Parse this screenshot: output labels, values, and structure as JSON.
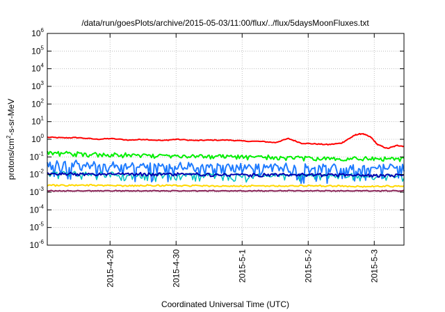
{
  "chart_data": {
    "type": "line",
    "title": "/data/run/goesPlots/archive/2015-05-03/11:00/flux/../flux/5daysMoonFluxes.txt",
    "xlabel": "Coordinated Universal Time (UTC)",
    "ylabel": "protons/cm2-s-sr-MeV",
    "ylabel_parts": {
      "pre": "protons/cm",
      "sup": "2",
      "post": "-s-sr-MeV"
    },
    "x_unit": "days since 2015-04-28 00:00 UTC",
    "xlim": [
      0.05,
      5.45
    ],
    "x_ticks": [
      {
        "label": "2015-4-29",
        "at": 1
      },
      {
        "label": "2015-4-30",
        "at": 2
      },
      {
        "label": "2015-5-1",
        "at": 3
      },
      {
        "label": "2015-5-2",
        "at": 4
      },
      {
        "label": "2015-5-3",
        "at": 5
      }
    ],
    "y_scale": "log",
    "ylim": [
      1e-06,
      1000000.0
    ],
    "y_ticks": [
      {
        "base": "10",
        "exp": "6"
      },
      {
        "base": "10",
        "exp": "5"
      },
      {
        "base": "10",
        "exp": "4"
      },
      {
        "base": "10",
        "exp": "3"
      },
      {
        "base": "10",
        "exp": "2"
      },
      {
        "base": "10",
        "exp": "1"
      },
      {
        "base": "10",
        "exp": "0"
      },
      {
        "base": "10",
        "exp": "-1"
      },
      {
        "base": "10",
        "exp": "-2"
      },
      {
        "base": "10",
        "exp": "-3"
      },
      {
        "base": "10",
        "exp": "-4"
      },
      {
        "base": "10",
        "exp": "-5"
      },
      {
        "base": "10",
        "exp": "-6"
      }
    ],
    "grid": true,
    "series": [
      {
        "color": "#ff0000",
        "width": 2,
        "x": [
          0.05,
          0.3,
          0.5,
          0.8,
          1.0,
          1.3,
          1.5,
          1.8,
          2.0,
          2.3,
          2.5,
          2.8,
          3.0,
          3.3,
          3.5,
          3.7,
          3.9,
          4.1,
          4.3,
          4.5,
          4.62,
          4.72,
          4.82,
          4.95,
          5.05,
          5.2,
          5.35,
          5.45
        ],
        "y": [
          1.3,
          1.2,
          1.25,
          1.0,
          1.1,
          0.9,
          1.0,
          0.85,
          1.0,
          0.85,
          0.9,
          0.9,
          0.8,
          0.75,
          0.65,
          1.1,
          0.6,
          0.55,
          0.5,
          0.6,
          1.1,
          1.8,
          2.1,
          1.3,
          0.5,
          0.3,
          0.45,
          0.4
        ]
      },
      {
        "color": "#00ee00",
        "width": 2,
        "base": [
          0.18,
          0.15,
          0.13,
          0.12,
          0.11,
          0.1,
          0.09,
          0.085,
          0.08
        ],
        "noise": 0.25,
        "spikes": 0.35
      },
      {
        "color": "#1e7bff",
        "width": 2,
        "base": [
          0.04,
          0.035,
          0.03,
          0.03,
          0.028,
          0.028,
          0.025,
          0.025,
          0.025
        ],
        "noise": 0.75,
        "spikes": 0.9
      },
      {
        "color": "#00c0c0",
        "width": 1.5,
        "base": [
          0.012,
          0.011,
          0.01,
          0.01,
          0.0095,
          0.009,
          0.009,
          0.0085,
          0.008
        ],
        "noise": 0.35,
        "spikes": 0.6
      },
      {
        "color": "#0000b0",
        "width": 2,
        "base": [
          0.012,
          0.011,
          0.011,
          0.011,
          0.01,
          0.01,
          0.01,
          0.0095,
          0.0095
        ],
        "noise": 0.2,
        "spikes": 0.25
      },
      {
        "color": "#ffd800",
        "width": 2,
        "base": [
          0.0025,
          0.0025,
          0.0024,
          0.0024,
          0.0023,
          0.0023,
          0.0023,
          0.0022,
          0.0022
        ],
        "noise": 0.12,
        "spikes": 0.1
      },
      {
        "color": "#882255",
        "width": 2,
        "base": [
          0.0012,
          0.0012,
          0.0012,
          0.0012,
          0.0012,
          0.0012,
          0.0012,
          0.0012,
          0.0012
        ],
        "noise": 0.08,
        "spikes": 0.05
      }
    ]
  }
}
